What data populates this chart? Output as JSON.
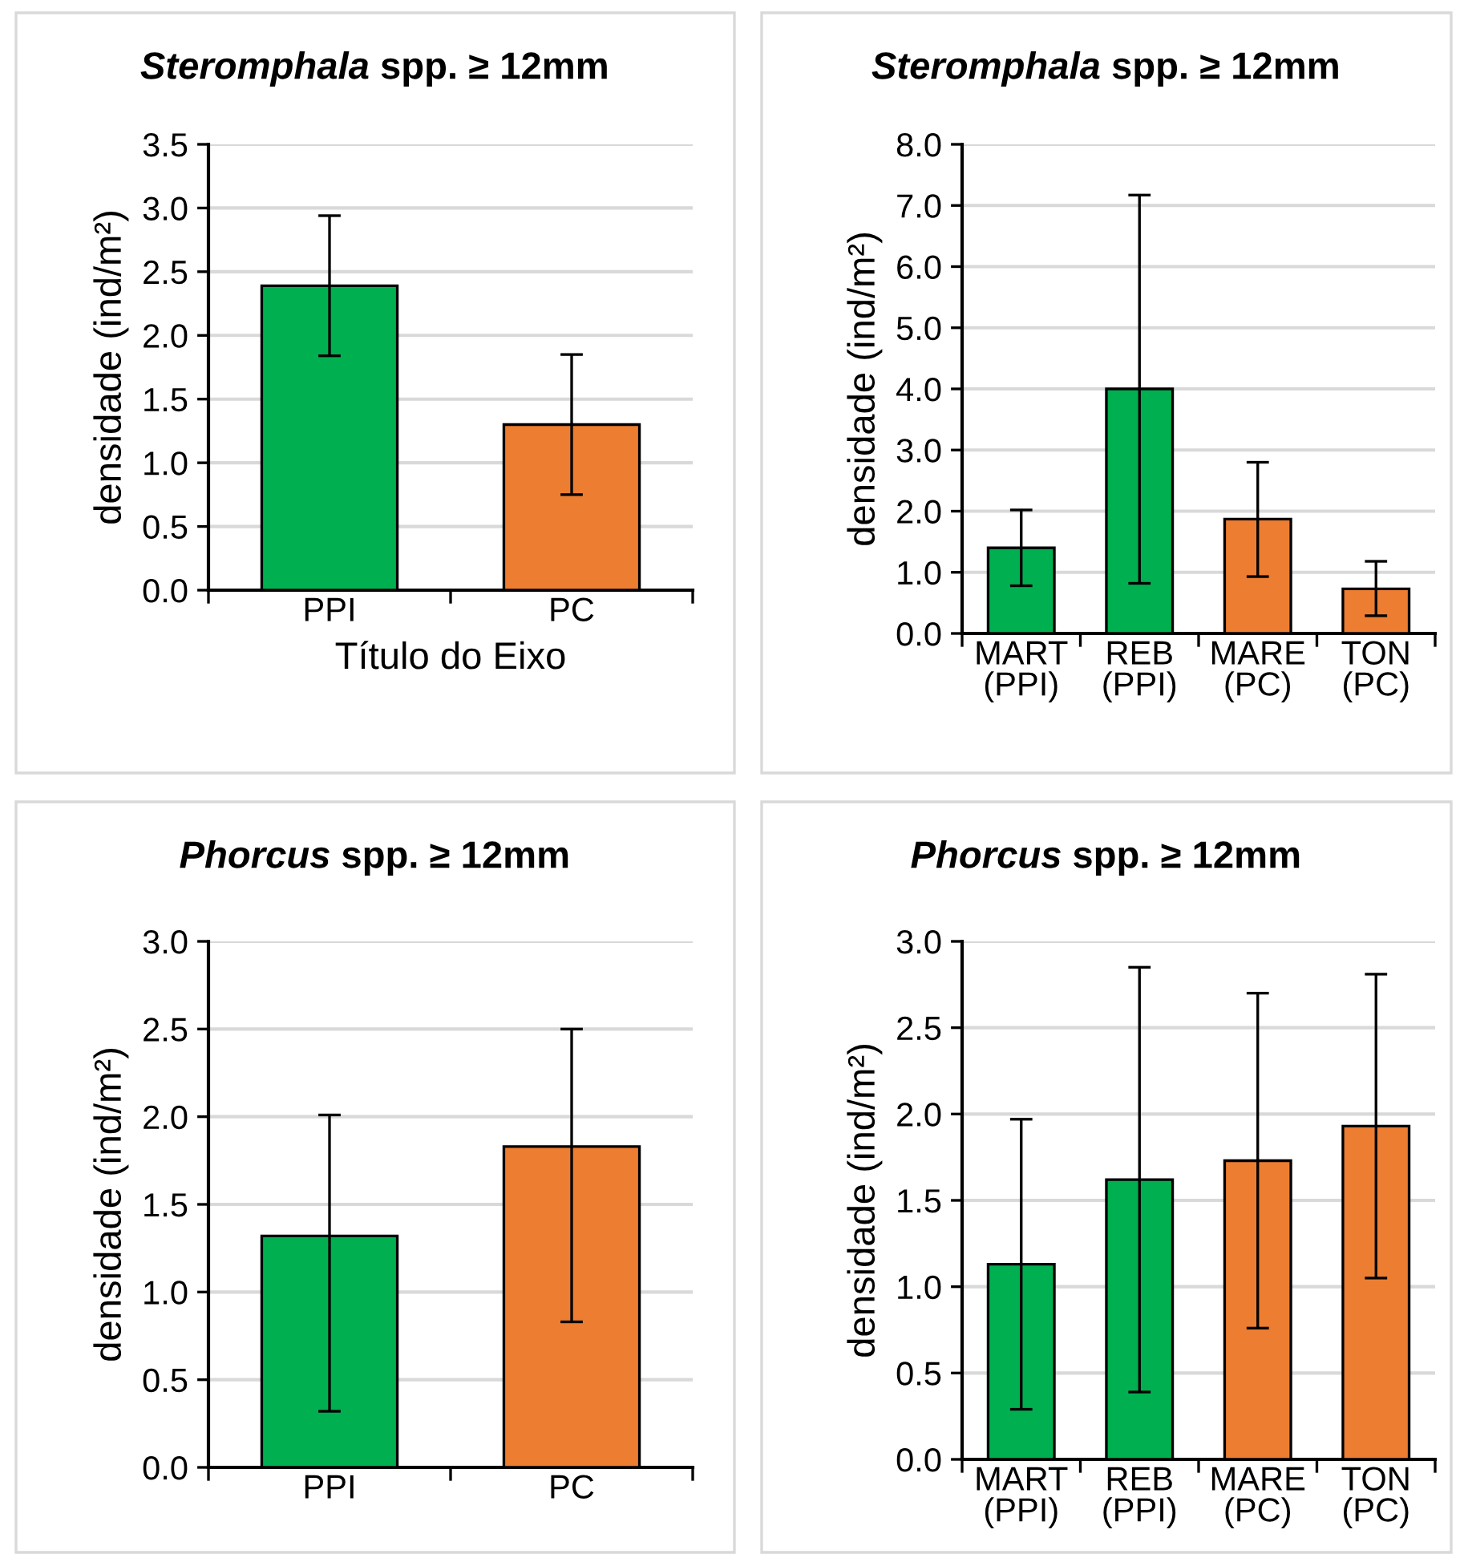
{
  "chart_data": [
    {
      "type": "bar",
      "title": "Steromphala spp. ≥ 12mm",
      "ylabel": "densidade (ind/m²)",
      "xlabel": "Título do Eixo",
      "categories": [
        "PPI",
        "PC"
      ],
      "values": [
        2.39,
        1.3
      ],
      "colors": [
        "#00b050",
        "#ed7d31"
      ],
      "errors": [
        [
          1.84,
          2.94
        ],
        [
          0.75,
          1.85
        ]
      ],
      "ylim": [
        0,
        3.5
      ],
      "yticks": [
        {
          "value": 0,
          "label": "0.0"
        },
        {
          "value": 0.5,
          "label": "0.5"
        },
        {
          "value": 1,
          "label": "1.0"
        },
        {
          "value": 1.5,
          "label": "1.5"
        },
        {
          "value": 2,
          "label": "2.0"
        },
        {
          "value": 2.5,
          "label": "2.5"
        },
        {
          "value": 3,
          "label": "3.0"
        },
        {
          "value": 3.5,
          "label": "3.5"
        }
      ],
      "grid": "y"
    },
    {
      "type": "bar",
      "title": "Steromphala spp. ≥ 12mm",
      "ylabel": "densidade (ind/m²)",
      "categories": [
        "MART\n(PPI)",
        "REB\n(PPI)",
        "MARE\n(PC)",
        "TON\n(PC)"
      ],
      "values": [
        1.4,
        4.0,
        1.87,
        0.73
      ],
      "colors": [
        "#00b050",
        "#00b050",
        "#ed7d31",
        "#ed7d31"
      ],
      "errors": [
        [
          0.78,
          2.02
        ],
        [
          0.82,
          7.17
        ],
        [
          0.93,
          2.8
        ],
        [
          0.29,
          1.18
        ]
      ],
      "ylim": [
        0,
        8
      ],
      "yticks": [
        {
          "value": 0,
          "label": "0.0"
        },
        {
          "value": 1,
          "label": "1.0"
        },
        {
          "value": 2,
          "label": "2.0"
        },
        {
          "value": 3,
          "label": "3.0"
        },
        {
          "value": 4,
          "label": "4.0"
        },
        {
          "value": 5,
          "label": "5.0"
        },
        {
          "value": 6,
          "label": "6.0"
        },
        {
          "value": 7,
          "label": "7.0"
        },
        {
          "value": 8,
          "label": "8.0"
        }
      ],
      "grid": "y"
    },
    {
      "type": "bar",
      "title": "Phorcus spp. ≥ 12mm",
      "ylabel": "densidade (ind/m²)",
      "categories": [
        "PPI",
        "PC"
      ],
      "values": [
        1.32,
        1.83
      ],
      "colors": [
        "#00b050",
        "#ed7d31"
      ],
      "errors": [
        [
          0.32,
          2.01
        ],
        [
          0.83,
          2.5
        ]
      ],
      "ylim": [
        0,
        3
      ],
      "yticks": [
        {
          "value": 0,
          "label": "0.0"
        },
        {
          "value": 0.5,
          "label": "0.5"
        },
        {
          "value": 1,
          "label": "1.0"
        },
        {
          "value": 1.5,
          "label": "1.5"
        },
        {
          "value": 2,
          "label": "2.0"
        },
        {
          "value": 2.5,
          "label": "2.5"
        },
        {
          "value": 3,
          "label": "3.0"
        }
      ],
      "grid": "y"
    },
    {
      "type": "bar",
      "title": "Phorcus spp. ≥ 12mm",
      "ylabel": "densidade (ind/m²)",
      "categories": [
        "MART\n(PPI)",
        "REB\n(PPI)",
        "MARE\n(PC)",
        "TON\n(PC)"
      ],
      "values": [
        1.13,
        1.62,
        1.73,
        1.93
      ],
      "colors": [
        "#00b050",
        "#00b050",
        "#ed7d31",
        "#ed7d31"
      ],
      "errors": [
        [
          0.29,
          1.97
        ],
        [
          0.39,
          2.85
        ],
        [
          0.76,
          2.7
        ],
        [
          1.05,
          2.81
        ]
      ],
      "ylim": [
        0,
        3
      ],
      "yticks": [
        {
          "value": 0,
          "label": "0.0"
        },
        {
          "value": 0.5,
          "label": "0.5"
        },
        {
          "value": 1,
          "label": "1.0"
        },
        {
          "value": 1.5,
          "label": "1.5"
        },
        {
          "value": 2,
          "label": "2.0"
        },
        {
          "value": 2.5,
          "label": "2.5"
        },
        {
          "value": 3,
          "label": "3.0"
        }
      ],
      "grid": "y"
    }
  ]
}
